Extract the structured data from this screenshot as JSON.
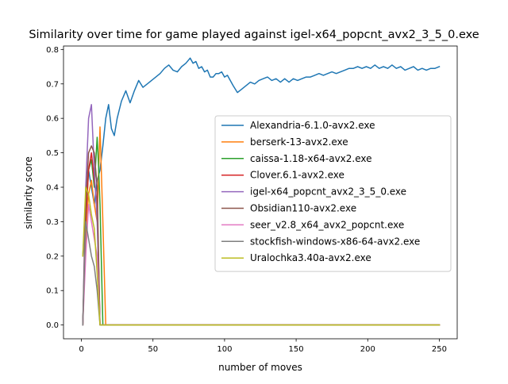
{
  "chart_data": {
    "type": "line",
    "title": "Similarity over time for game played against igel-x64_popcnt_avx2_3_5_0.exe",
    "xlabel": "number of moves",
    "ylabel": "similarity score",
    "xlim": [
      -12.5,
      262.5
    ],
    "ylim": [
      -0.04,
      0.81
    ],
    "xticks": [
      0,
      50,
      100,
      150,
      200,
      250
    ],
    "yticks": [
      0.0,
      0.1,
      0.2,
      0.3,
      0.4,
      0.5,
      0.6,
      0.7,
      0.8
    ],
    "xtick_labels": [
      "0",
      "50",
      "100",
      "150",
      "200",
      "250"
    ],
    "ytick_labels": [
      "0.0",
      "0.1",
      "0.2",
      "0.3",
      "0.4",
      "0.5",
      "0.6",
      "0.7",
      "0.8"
    ],
    "legend_position": "center-right",
    "grid": false,
    "series": [
      {
        "name": "Alexandria-6.1.0-avx2.exe",
        "color": "#1f77b4",
        "x": [
          1,
          3,
          5,
          7,
          9,
          11,
          13,
          15,
          17,
          19,
          21,
          23,
          25,
          28,
          31,
          34,
          37,
          40,
          43,
          46,
          49,
          52,
          55,
          58,
          61,
          64,
          67,
          70,
          73,
          76,
          78,
          80,
          82,
          84,
          86,
          88,
          90,
          92,
          94,
          96,
          98,
          100,
          102,
          104,
          106,
          109,
          112,
          115,
          118,
          121,
          124,
          127,
          130,
          133,
          136,
          139,
          142,
          145,
          148,
          151,
          154,
          157,
          160,
          163,
          166,
          169,
          172,
          175,
          178,
          181,
          184,
          187,
          190,
          193,
          196,
          199,
          202,
          205,
          208,
          211,
          214,
          217,
          220,
          223,
          226,
          229,
          232,
          235,
          238,
          241,
          244,
          247,
          250
        ],
        "y": [
          0.2,
          0.35,
          0.45,
          0.4,
          0.35,
          0.42,
          0.45,
          0.52,
          0.6,
          0.64,
          0.57,
          0.55,
          0.6,
          0.65,
          0.68,
          0.645,
          0.68,
          0.71,
          0.69,
          0.7,
          0.71,
          0.72,
          0.73,
          0.745,
          0.755,
          0.74,
          0.735,
          0.75,
          0.76,
          0.775,
          0.76,
          0.765,
          0.745,
          0.75,
          0.735,
          0.74,
          0.72,
          0.72,
          0.73,
          0.73,
          0.735,
          0.72,
          0.725,
          0.71,
          0.695,
          0.675,
          0.685,
          0.695,
          0.705,
          0.7,
          0.71,
          0.715,
          0.72,
          0.71,
          0.715,
          0.705,
          0.715,
          0.705,
          0.715,
          0.71,
          0.715,
          0.72,
          0.72,
          0.725,
          0.73,
          0.725,
          0.73,
          0.735,
          0.73,
          0.735,
          0.74,
          0.745,
          0.745,
          0.75,
          0.745,
          0.75,
          0.745,
          0.755,
          0.745,
          0.75,
          0.745,
          0.755,
          0.745,
          0.75,
          0.74,
          0.745,
          0.75,
          0.74,
          0.745,
          0.74,
          0.745,
          0.745,
          0.75
        ]
      },
      {
        "name": "berserk-13-avx2.exe",
        "color": "#ff7f0e",
        "x": [
          1,
          3,
          5,
          7,
          9,
          11,
          13,
          15,
          17,
          100,
          200,
          250
        ],
        "y": [
          0.0,
          0.25,
          0.38,
          0.42,
          0.35,
          0.3,
          0.575,
          0.3,
          0.0,
          0.0,
          0.0,
          0.0
        ]
      },
      {
        "name": "caissa-1.18-x64-avx2.exe",
        "color": "#2ca02c",
        "x": [
          1,
          3,
          5,
          7,
          9,
          11,
          12,
          13,
          15,
          100,
          200,
          250
        ],
        "y": [
          0.0,
          0.3,
          0.45,
          0.48,
          0.4,
          0.545,
          0.46,
          0.35,
          0.0,
          0.0,
          0.0,
          0.0
        ]
      },
      {
        "name": "Clover.6.1-avx2.exe",
        "color": "#d62728",
        "x": [
          1,
          3,
          5,
          7,
          9,
          11,
          13,
          15,
          100,
          200,
          250
        ],
        "y": [
          0.0,
          0.3,
          0.45,
          0.5,
          0.42,
          0.35,
          0.0,
          0.0,
          0.0,
          0.0,
          0.0
        ]
      },
      {
        "name": "igel-x64_popcnt_avx2_3_5_0.exe",
        "color": "#9467bd",
        "x": [
          1,
          3,
          5,
          7,
          9,
          11,
          13,
          15,
          100,
          200,
          250
        ],
        "y": [
          0.0,
          0.4,
          0.6,
          0.64,
          0.45,
          0.3,
          0.0,
          0.0,
          0.0,
          0.0,
          0.0
        ]
      },
      {
        "name": "Obsidian110-avx2.exe",
        "color": "#8c564b",
        "x": [
          1,
          3,
          5,
          7,
          9,
          11,
          13,
          100,
          200,
          250
        ],
        "y": [
          0.0,
          0.35,
          0.5,
          0.52,
          0.5,
          0.4,
          0.0,
          0.0,
          0.0,
          0.0
        ]
      },
      {
        "name": "seer_v2.8_x64_avx2_popcnt.exe",
        "color": "#e377c2",
        "x": [
          1,
          3,
          5,
          7,
          9,
          11,
          13,
          100,
          200,
          250
        ],
        "y": [
          0.0,
          0.2,
          0.35,
          0.3,
          0.25,
          0.2,
          0.0,
          0.0,
          0.0,
          0.0
        ]
      },
      {
        "name": "stockfish-windows-x86-64-avx2.exe",
        "color": "#7f7f7f",
        "x": [
          1,
          3,
          5,
          7,
          9,
          11,
          13,
          100,
          200,
          250
        ],
        "y": [
          0.0,
          0.3,
          0.25,
          0.2,
          0.17,
          0.1,
          0.0,
          0.0,
          0.0,
          0.0
        ]
      },
      {
        "name": "Uralochka3.40a-avx2.exe",
        "color": "#bcbd22",
        "x": [
          1,
          3,
          5,
          7,
          9,
          11,
          13,
          15,
          100,
          200,
          250
        ],
        "y": [
          0.2,
          0.4,
          0.38,
          0.32,
          0.28,
          0.15,
          0.0,
          0.0,
          0.0,
          0.0,
          0.0
        ]
      }
    ]
  }
}
